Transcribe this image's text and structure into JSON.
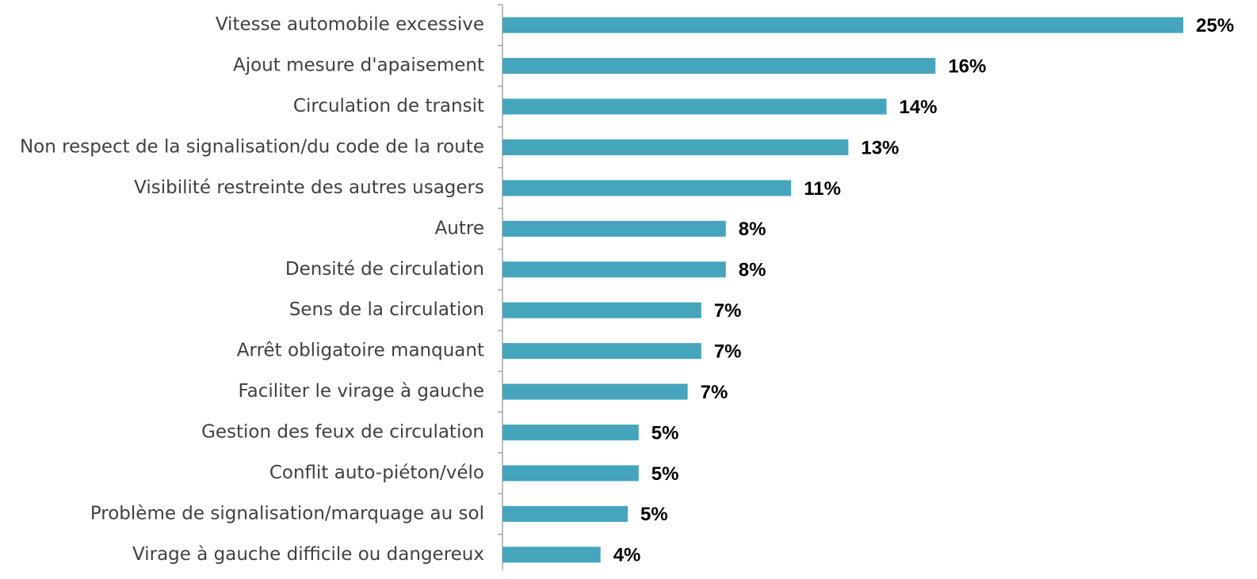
{
  "chart_data": {
    "type": "hbar",
    "categories": [
      "Vitesse automobile excessive",
      "Ajout mesure d'apaisement",
      "Circulation de transit",
      "Non respect de la signalisation/du code de la route",
      "Visibilité restreinte des autres usagers",
      "Autre",
      "Densité de circulation",
      "Sens de la circulation",
      "Arrêt obligatoire manquant",
      "Faciliter le virage à gauche ",
      "Gestion des feux de circulation",
      "Conflit auto-piéton/vélo",
      "Problème de signalisation/marquage au sol",
      "Virage à gauche difficile ou dangereux"
    ],
    "values": [
      25,
      15.9,
      14.1,
      12.7,
      10.6,
      8.2,
      8.2,
      7.3,
      7.3,
      6.8,
      5.0,
      5.0,
      4.6,
      3.6
    ],
    "value_labels": [
      "25%",
      "16%",
      "14%",
      "13%",
      "11%",
      "8%",
      "8%",
      "7%",
      "7%",
      "7%",
      "5%",
      "5%",
      "5%",
      "4%"
    ],
    "color": "#45a5bd",
    "xlim": [
      0,
      25
    ]
  }
}
